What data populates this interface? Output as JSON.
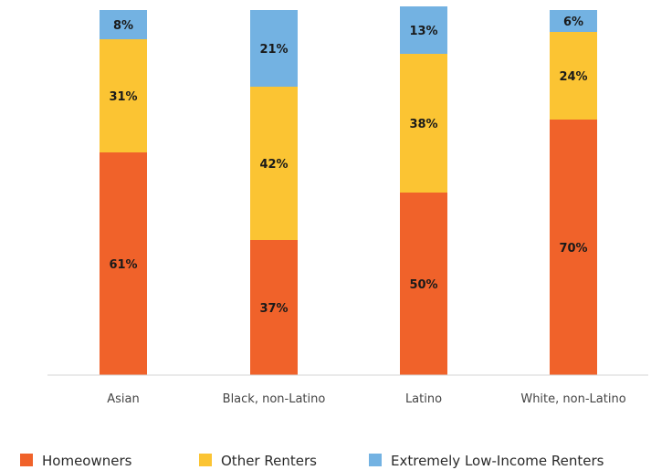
{
  "chart_data": {
    "type": "bar",
    "stacked": true,
    "percent": true,
    "categories": [
      "Asian",
      "Black, non-Latino",
      "Latino",
      "White, non-Latino"
    ],
    "series": [
      {
        "name": "Homeowners",
        "color": "#F0622A",
        "values": [
          61,
          37,
          50,
          70
        ]
      },
      {
        "name": "Other Renters",
        "color": "#FBC433",
        "values": [
          31,
          42,
          38,
          24
        ]
      },
      {
        "name": "Extremely Low-Income Renters",
        "color": "#73B2E2",
        "values": [
          8,
          21,
          13,
          6
        ]
      }
    ],
    "data_labels": [
      [
        "61%",
        "37%",
        "50%",
        "70%"
      ],
      [
        "31%",
        "42%",
        "38%",
        "24%"
      ],
      [
        "8%",
        "21%",
        "13%",
        "6%"
      ]
    ],
    "ylim": [
      0,
      100
    ],
    "title": "",
    "xlabel": "",
    "ylabel": "",
    "grid": false,
    "legend_position": "bottom"
  }
}
